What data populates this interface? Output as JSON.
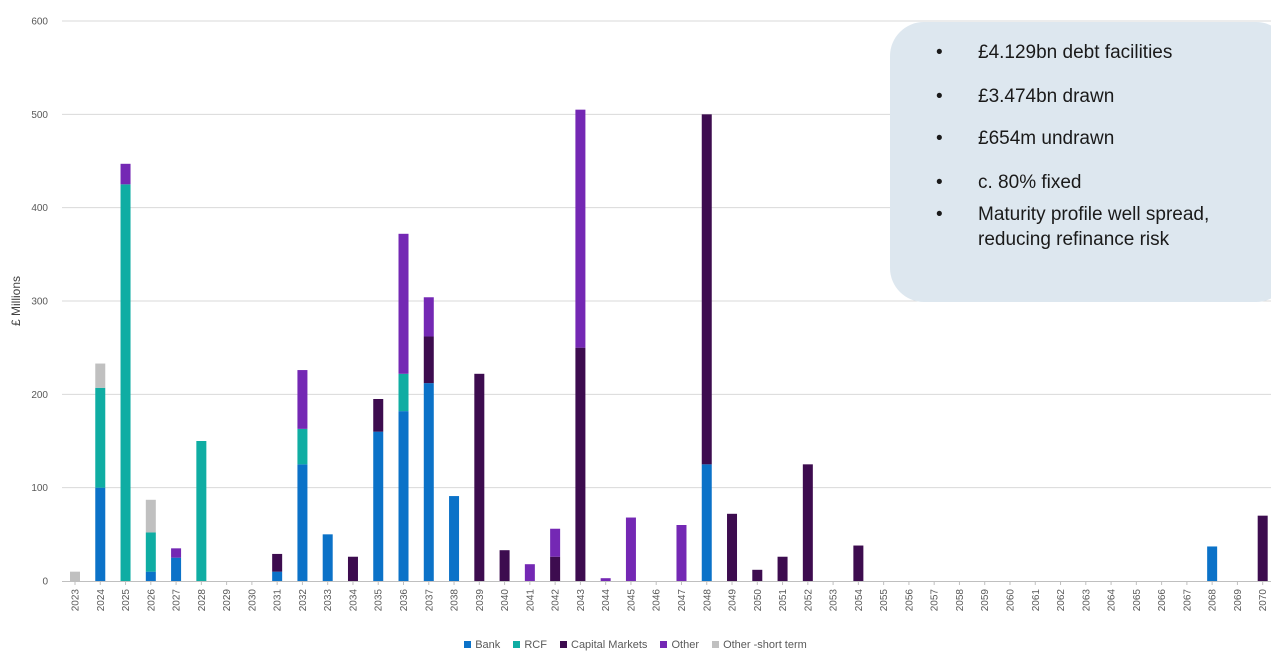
{
  "callout": {
    "bullets": [
      "£4.129bn debt facilities",
      "£3.474bn drawn",
      "£654m undrawn",
      "c. 80% fixed",
      "Maturity profile well spread, reducing refinance risk"
    ]
  },
  "chart_data": {
    "type": "bar",
    "stacked": true,
    "title": "",
    "xlabel": "",
    "ylabel": "£  Millions",
    "ylim": [
      0,
      600
    ],
    "yticks": [
      0,
      100,
      200,
      300,
      400,
      500,
      600
    ],
    "grid": true,
    "legend_position": "bottom",
    "categories": [
      "2023",
      "2024",
      "2025",
      "2026",
      "2027",
      "2028",
      "2029",
      "2030",
      "2031",
      "2032",
      "2033",
      "2034",
      "2035",
      "2036",
      "2037",
      "2038",
      "2039",
      "2040",
      "2041",
      "2042",
      "2043",
      "2044",
      "2045",
      "2046",
      "2047",
      "2048",
      "2049",
      "2050",
      "2051",
      "2052",
      "2053",
      "2054",
      "2055",
      "2056",
      "2057",
      "2058",
      "2059",
      "2060",
      "2061",
      "2062",
      "2063",
      "2064",
      "2065",
      "2066",
      "2067",
      "2068",
      "2069",
      "2070"
    ],
    "series": [
      {
        "name": "Bank",
        "color": "#0b72c8",
        "values": [
          0,
          100,
          0,
          10,
          25,
          0,
          0,
          0,
          10,
          125,
          50,
          0,
          160,
          182,
          212,
          91,
          0,
          0,
          0,
          0,
          0,
          0,
          0,
          0,
          0,
          125,
          0,
          0,
          0,
          0,
          0,
          0,
          0,
          0,
          0,
          0,
          0,
          0,
          0,
          0,
          0,
          0,
          0,
          0,
          0,
          37,
          0,
          0
        ]
      },
      {
        "name": "RCF",
        "color": "#0fada3",
        "values": [
          0,
          107,
          425,
          42,
          0,
          150,
          0,
          0,
          0,
          38,
          0,
          0,
          0,
          40,
          0,
          0,
          0,
          0,
          0,
          0,
          0,
          0,
          0,
          0,
          0,
          0,
          0,
          0,
          0,
          0,
          0,
          0,
          0,
          0,
          0,
          0,
          0,
          0,
          0,
          0,
          0,
          0,
          0,
          0,
          0,
          0,
          0,
          0
        ]
      },
      {
        "name": "Capital Markets",
        "color": "#3d0c4f",
        "values": [
          0,
          0,
          0,
          0,
          0,
          0,
          0,
          0,
          19,
          0,
          0,
          26,
          35,
          0,
          50,
          0,
          222,
          33,
          0,
          26,
          250,
          0,
          0,
          0,
          0,
          375,
          72,
          12,
          26,
          125,
          0,
          38,
          0,
          0,
          0,
          0,
          0,
          0,
          0,
          0,
          0,
          0,
          0,
          0,
          0,
          0,
          0,
          70
        ]
      },
      {
        "name": "Other",
        "color": "#7428b4",
        "values": [
          0,
          0,
          22,
          0,
          10,
          0,
          0,
          0,
          0,
          63,
          0,
          0,
          0,
          150,
          42,
          0,
          0,
          0,
          18,
          30,
          255,
          3,
          68,
          0,
          60,
          0,
          0,
          0,
          0,
          0,
          0,
          0,
          0,
          0,
          0,
          0,
          0,
          0,
          0,
          0,
          0,
          0,
          0,
          0,
          0,
          0,
          0,
          0
        ]
      },
      {
        "name": "Other -short term",
        "color": "#c0c0c0",
        "values": [
          10,
          26,
          0,
          35,
          0,
          0,
          0,
          0,
          0,
          0,
          0,
          0,
          0,
          0,
          0,
          0,
          0,
          0,
          0,
          0,
          0,
          0,
          0,
          0,
          0,
          0,
          0,
          0,
          0,
          0,
          0,
          0,
          0,
          0,
          0,
          0,
          0,
          0,
          0,
          0,
          0,
          0,
          0,
          0,
          0,
          0,
          0,
          0
        ]
      }
    ]
  }
}
